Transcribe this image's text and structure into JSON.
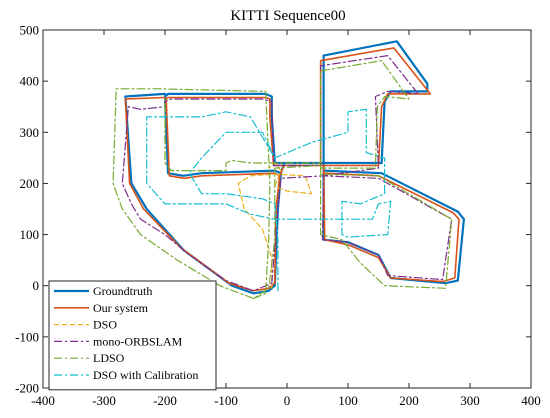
{
  "chart_data": {
    "type": "line",
    "title": "KITTI Sequence00",
    "xlabel": "",
    "ylabel": "",
    "xlim": [
      -400,
      400
    ],
    "ylim": [
      -200,
      500
    ],
    "xticks": [
      -400,
      -300,
      -200,
      -100,
      0,
      100,
      200,
      300,
      400
    ],
    "yticks": [
      -200,
      -100,
      0,
      100,
      200,
      300,
      400,
      500
    ],
    "grid": false,
    "legend_position": "bottom-left",
    "series": [
      {
        "name": "Groundtruth",
        "color": "#0072bd",
        "dash": "solid",
        "width": 2.2,
        "points": [
          [
            -30,
            -10
          ],
          [
            -20,
            0
          ],
          [
            -15,
            150
          ],
          [
            -10,
            220
          ],
          [
            -5,
            240
          ],
          [
            60,
            240
          ],
          [
            60,
            90
          ],
          [
            100,
            85
          ],
          [
            150,
            60
          ],
          [
            170,
            15
          ],
          [
            260,
            5
          ],
          [
            280,
            10
          ],
          [
            290,
            130
          ],
          [
            280,
            145
          ],
          [
            155,
            220
          ],
          [
            60,
            225
          ],
          [
            60,
            240
          ],
          [
            155,
            240
          ],
          [
            160,
            360
          ],
          [
            170,
            380
          ],
          [
            230,
            380
          ],
          [
            230,
            395
          ],
          [
            180,
            478
          ],
          [
            60,
            450
          ],
          [
            60,
            240
          ],
          [
            -20,
            240
          ],
          [
            -25,
            330
          ],
          [
            -25,
            370
          ],
          [
            -35,
            375
          ],
          [
            -195,
            375
          ],
          [
            -200,
            370
          ],
          [
            -195,
            220
          ],
          [
            -170,
            215
          ],
          [
            -140,
            220
          ],
          [
            -20,
            225
          ],
          [
            -10,
            220
          ],
          [
            -15,
            150
          ],
          [
            -20,
            0
          ],
          [
            -30,
            -10
          ],
          [
            -55,
            -15
          ],
          [
            -90,
            0
          ],
          [
            -170,
            70
          ],
          [
            -230,
            150
          ],
          [
            -255,
            200
          ],
          [
            -265,
            370
          ],
          [
            -200,
            375
          ]
        ]
      },
      {
        "name": "Our system",
        "color": "#d95319",
        "dash": "solid",
        "width": 1.6,
        "points": [
          [
            -30,
            -5
          ],
          [
            -20,
            5
          ],
          [
            -18,
            150
          ],
          [
            -12,
            215
          ],
          [
            -5,
            235
          ],
          [
            60,
            235
          ],
          [
            62,
            90
          ],
          [
            100,
            80
          ],
          [
            150,
            55
          ],
          [
            170,
            15
          ],
          [
            255,
            8
          ],
          [
            275,
            15
          ],
          [
            282,
            130
          ],
          [
            272,
            143
          ],
          [
            150,
            215
          ],
          [
            60,
            220
          ],
          [
            60,
            235
          ],
          [
            150,
            235
          ],
          [
            155,
            350
          ],
          [
            165,
            375
          ],
          [
            235,
            375
          ],
          [
            225,
            390
          ],
          [
            175,
            465
          ],
          [
            55,
            440
          ],
          [
            55,
            235
          ],
          [
            -22,
            235
          ],
          [
            -28,
            330
          ],
          [
            -28,
            365
          ],
          [
            -35,
            368
          ],
          [
            -195,
            368
          ],
          [
            -198,
            365
          ],
          [
            -193,
            215
          ],
          [
            -168,
            210
          ],
          [
            -140,
            215
          ],
          [
            -20,
            220
          ],
          [
            -12,
            215
          ],
          [
            -18,
            150
          ],
          [
            -20,
            5
          ],
          [
            -30,
            -5
          ],
          [
            -55,
            -10
          ],
          [
            -95,
            5
          ],
          [
            -175,
            75
          ],
          [
            -235,
            150
          ],
          [
            -258,
            200
          ],
          [
            -265,
            365
          ],
          [
            -200,
            368
          ]
        ]
      },
      {
        "name": "DSO",
        "color": "#edb120",
        "dash": "5,3",
        "width": 1.2,
        "points": [
          [
            -25,
            -5
          ],
          [
            -25,
            55
          ],
          [
            -40,
            110
          ],
          [
            -70,
            150
          ],
          [
            -80,
            200
          ],
          [
            -60,
            215
          ],
          [
            -20,
            218
          ],
          [
            30,
            215
          ],
          [
            40,
            180
          ],
          [
            0,
            185
          ],
          [
            -20,
            195
          ],
          [
            -10,
            225
          ],
          [
            -20,
            240
          ],
          [
            -30,
            230
          ]
        ]
      },
      {
        "name": "mono-ORBSLAM",
        "color": "#7e2f8e",
        "dash": "8,3,2,3",
        "width": 1.2,
        "points": [
          [
            -25,
            5
          ],
          [
            -15,
            150
          ],
          [
            -10,
            210
          ],
          [
            60,
            215
          ],
          [
            58,
            90
          ],
          [
            100,
            85
          ],
          [
            150,
            60
          ],
          [
            165,
            20
          ],
          [
            255,
            12
          ],
          [
            270,
            130
          ],
          [
            150,
            210
          ],
          [
            60,
            215
          ],
          [
            150,
            230
          ],
          [
            145,
            370
          ],
          [
            165,
            380
          ],
          [
            215,
            375
          ],
          [
            165,
            450
          ],
          [
            55,
            430
          ],
          [
            55,
            235
          ],
          [
            -22,
            235
          ],
          [
            -25,
            360
          ],
          [
            -40,
            365
          ],
          [
            -190,
            365
          ],
          [
            -200,
            360
          ],
          [
            -200,
            350
          ],
          [
            -240,
            345
          ],
          [
            -260,
            350
          ],
          [
            -270,
            200
          ],
          [
            -255,
            160
          ],
          [
            -240,
            130
          ],
          [
            -200,
            100
          ],
          [
            -160,
            60
          ],
          [
            -100,
            10
          ],
          [
            -55,
            -10
          ],
          [
            -25,
            5
          ]
        ]
      },
      {
        "name": "LDSO",
        "color": "#77ac30",
        "dash": "8,3,2,3",
        "width": 1.2,
        "points": [
          [
            -55,
            -25
          ],
          [
            -35,
            -15
          ],
          [
            -30,
            90
          ],
          [
            -28,
            200
          ],
          [
            -35,
            380
          ],
          [
            -210,
            385
          ],
          [
            -280,
            385
          ],
          [
            -285,
            200
          ],
          [
            -270,
            150
          ],
          [
            -240,
            100
          ],
          [
            -180,
            50
          ],
          [
            -110,
            0
          ],
          [
            -55,
            -25
          ],
          [
            -30,
            -5
          ],
          [
            -20,
            90
          ],
          [
            -20,
            230
          ],
          [
            55,
            235
          ],
          [
            55,
            100
          ],
          [
            90,
            90
          ],
          [
            120,
            45
          ],
          [
            160,
            0
          ],
          [
            260,
            -5
          ],
          [
            270,
            130
          ],
          [
            150,
            215
          ],
          [
            55,
            218
          ],
          [
            55,
            230
          ],
          [
            145,
            230
          ],
          [
            148,
            350
          ],
          [
            160,
            370
          ],
          [
            200,
            365
          ],
          [
            155,
            440
          ],
          [
            55,
            420
          ],
          [
            55,
            240
          ],
          [
            -60,
            240
          ],
          [
            -90,
            245
          ],
          [
            -100,
            240
          ],
          [
            -100,
            225
          ],
          [
            -190,
            225
          ],
          [
            -200,
            240
          ],
          [
            -200,
            370
          ]
        ]
      },
      {
        "name": "DSO with Calibration",
        "color": "#17becf",
        "dash": "8,3,2,3",
        "width": 1.2,
        "points": [
          [
            -15,
            -10
          ],
          [
            -15,
            90
          ],
          [
            -20,
            160
          ],
          [
            -40,
            170
          ],
          [
            -100,
            180
          ],
          [
            -140,
            180
          ],
          [
            -160,
            220
          ],
          [
            -140,
            250
          ],
          [
            -100,
            300
          ],
          [
            -40,
            300
          ],
          [
            -20,
            250
          ],
          [
            40,
            280
          ],
          [
            100,
            300
          ],
          [
            100,
            340
          ],
          [
            130,
            345
          ],
          [
            130,
            260
          ],
          [
            160,
            250
          ],
          [
            160,
            180
          ],
          [
            140,
            170
          ],
          [
            120,
            160
          ],
          [
            90,
            165
          ],
          [
            90,
            100
          ],
          [
            100,
            95
          ],
          [
            165,
            100
          ],
          [
            170,
            165
          ],
          [
            150,
            160
          ],
          [
            140,
            130
          ],
          [
            -20,
            130
          ],
          [
            -60,
            140
          ],
          [
            -100,
            160
          ],
          [
            -200,
            160
          ],
          [
            -230,
            200
          ],
          [
            -230,
            330
          ],
          [
            -140,
            330
          ],
          [
            -100,
            340
          ],
          [
            -60,
            330
          ],
          [
            -20,
            250
          ]
        ]
      }
    ]
  }
}
